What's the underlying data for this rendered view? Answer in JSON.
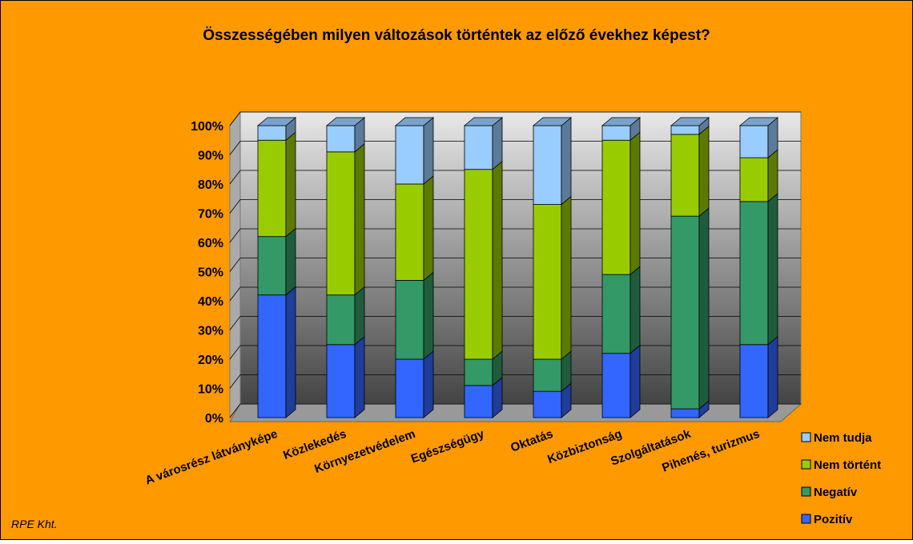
{
  "chart_data": {
    "type": "bar",
    "stacked": true,
    "title": "Összességében milyen változások történtek az előző évekhez képest?",
    "note": "RPE Kht.",
    "categories": [
      "A városrész látványképe",
      "Közlekedés",
      "Környezetvédelem",
      "Egészségügy",
      "Oktatás",
      "Közbiztonság",
      "Szolgáltatások",
      "Pihenés, turizmus"
    ],
    "series": [
      {
        "name": "Pozitív",
        "color": "#3366ff",
        "values": [
          42,
          25,
          20,
          11,
          9,
          22,
          3,
          25
        ]
      },
      {
        "name": "Negatív",
        "color": "#339966",
        "values": [
          20,
          17,
          27,
          9,
          11,
          27,
          66,
          49
        ]
      },
      {
        "name": "Nem történt",
        "color": "#99cc00",
        "values": [
          33,
          49,
          33,
          65,
          53,
          46,
          28,
          15
        ]
      },
      {
        "name": "Nem tudja",
        "color": "#99ccff",
        "values": [
          5,
          9,
          20,
          15,
          27,
          5,
          3,
          11
        ]
      }
    ],
    "ylim": [
      0,
      100
    ],
    "yticks": [
      {
        "value": 0,
        "label": "0%"
      },
      {
        "value": 10,
        "label": "10%"
      },
      {
        "value": 20,
        "label": "20%"
      },
      {
        "value": 30,
        "label": "30%"
      },
      {
        "value": 40,
        "label": "40%"
      },
      {
        "value": 50,
        "label": "50%"
      },
      {
        "value": 60,
        "label": "60%"
      },
      {
        "value": 70,
        "label": "70%"
      },
      {
        "value": 80,
        "label": "80%"
      },
      {
        "value": 90,
        "label": "90%"
      },
      {
        "value": 100,
        "label": "100%"
      }
    ],
    "grid": true,
    "legend": "right"
  }
}
